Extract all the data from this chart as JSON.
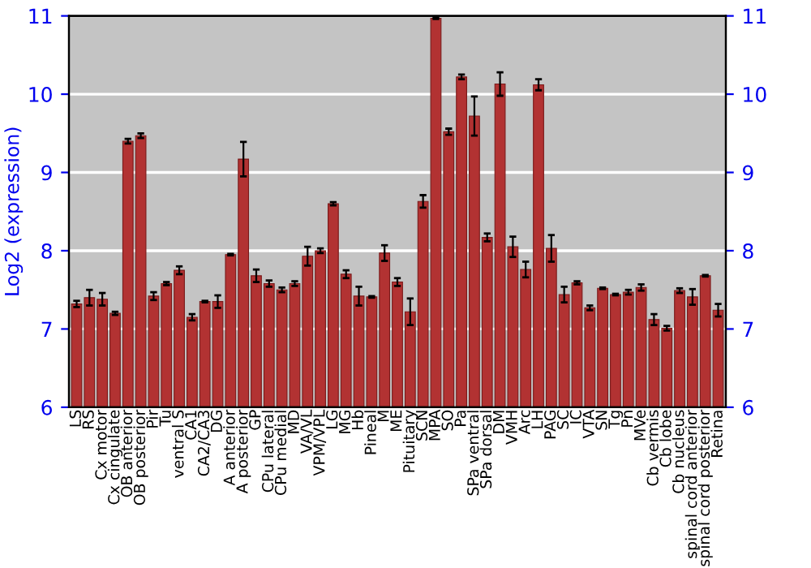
{
  "chart_data": {
    "type": "bar",
    "ylabel": "Log2 (expression)",
    "categories": [
      "LS",
      "RS",
      "Cx motor",
      "Cx cingulate",
      "OB anterior",
      "OB posterior",
      "Pir",
      "Tu",
      "ventral S",
      "CA1",
      "CA2/CA3",
      "DG",
      "A anterior",
      "A posterior",
      "GP",
      "CPu lateral",
      "CPu medial",
      "MD",
      "VA/VL",
      "VPM/VPL",
      "LG",
      "MG",
      "Hb",
      "Pineal",
      "M",
      "ME",
      "Pituitary",
      "SCN",
      "MPA",
      "SO",
      "Pa",
      "SPa ventral",
      "SPa dorsal",
      "DM",
      "VMH",
      "Arc",
      "LH",
      "PAG",
      "SC",
      "IC",
      "VTA",
      "SN",
      "Tg",
      "Pn",
      "MVe",
      "Cb vermis",
      "Cb lobe",
      "Cb nucleus",
      "spinal cord anterior",
      "spinal cord posterior",
      "Retina"
    ],
    "values": [
      7.32,
      7.4,
      7.38,
      7.2,
      9.4,
      9.47,
      7.42,
      7.58,
      7.75,
      7.15,
      7.35,
      7.35,
      7.95,
      9.17,
      7.68,
      7.58,
      7.5,
      7.58,
      7.93,
      8.0,
      8.6,
      7.7,
      7.42,
      7.41,
      7.97,
      7.6,
      7.22,
      8.63,
      10.97,
      9.52,
      10.22,
      9.72,
      8.17,
      10.13,
      8.05,
      7.76,
      10.12,
      8.03,
      7.44,
      7.59,
      7.27,
      7.52,
      7.44,
      7.47,
      7.53,
      7.12,
      7.01,
      7.49,
      7.41,
      7.68,
      7.24
    ],
    "errors": [
      0.04,
      0.1,
      0.08,
      0.02,
      0.03,
      0.03,
      0.05,
      0.02,
      0.05,
      0.04,
      0.01,
      0.08,
      0.01,
      0.22,
      0.08,
      0.04,
      0.03,
      0.03,
      0.12,
      0.03,
      0.02,
      0.05,
      0.12,
      0.01,
      0.1,
      0.05,
      0.17,
      0.08,
      0.01,
      0.04,
      0.03,
      0.25,
      0.05,
      0.15,
      0.13,
      0.1,
      0.07,
      0.17,
      0.1,
      0.02,
      0.03,
      0.01,
      0.01,
      0.03,
      0.04,
      0.07,
      0.03,
      0.03,
      0.1,
      0.01,
      0.08
    ],
    "color": "#b23232",
    "ylim": [
      6,
      11
    ],
    "yticks": [
      6,
      7,
      8,
      9,
      10,
      11
    ],
    "y2lim": [
      6,
      11
    ],
    "y2ticks": [
      6,
      7,
      8,
      9,
      10,
      11
    ],
    "grid": "y",
    "legend": false
  }
}
